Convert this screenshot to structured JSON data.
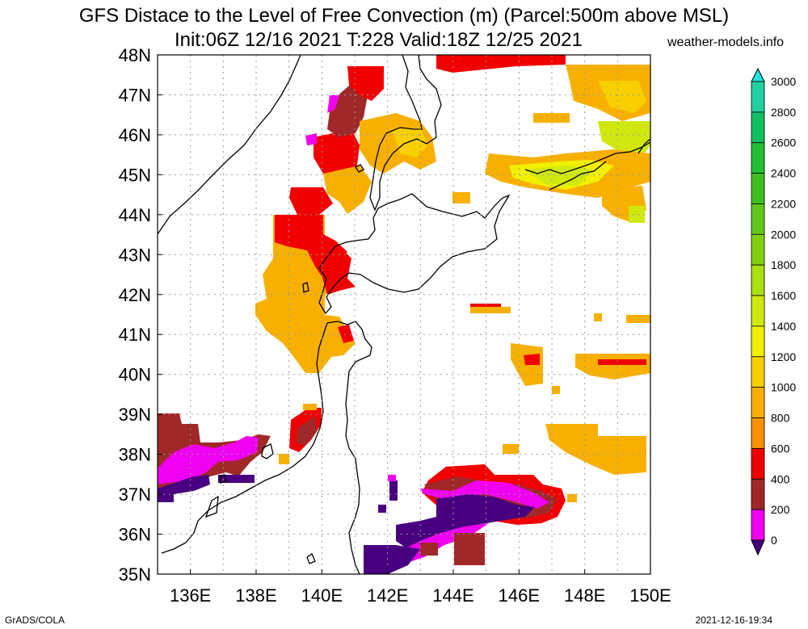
{
  "title": "GFS Distace to the Level of Free Convection (m) (Parcel:500m above MSL)",
  "subtitle": "Init:06Z 12/16 2021 T:228 Valid:18Z 12/25 2021",
  "site": "weather-models.info",
  "footer": {
    "left": "GrADS/COLA",
    "right": "2021-12-16-19:34"
  },
  "lat_labels": [
    "48N",
    "47N",
    "46N",
    "45N",
    "44N",
    "43N",
    "42N",
    "41N",
    "40N",
    "39N",
    "38N",
    "37N",
    "36N",
    "35N"
  ],
  "lon_labels": [
    "136E",
    "138E",
    "140E",
    "142E",
    "144E",
    "146E",
    "148E",
    "150E"
  ],
  "colorbar": {
    "labels": [
      "3000",
      "2800",
      "2600",
      "2400",
      "2200",
      "2000",
      "1800",
      "1600",
      "1400",
      "1200",
      "1000",
      "800",
      "600",
      "400",
      "200",
      "0"
    ],
    "colors": [
      "#20e0e0",
      "#20d0a0",
      "#10c060",
      "#20c030",
      "#40c020",
      "#60c818",
      "#80d010",
      "#a8e010",
      "#d0e810",
      "#f0f000",
      "#f8d000",
      "#f8b000",
      "#f89000",
      "#f00000",
      "#a02828",
      "#f000f0",
      "#480080"
    ]
  },
  "colors": {
    "purple": "#480080",
    "magenta": "#f000f0",
    "brown": "#a02828",
    "red": "#f00000",
    "orange": "#f89000",
    "amber": "#f8b000",
    "gold": "#f8d000",
    "yellow": "#f0f000",
    "lime": "#d0e810"
  }
}
